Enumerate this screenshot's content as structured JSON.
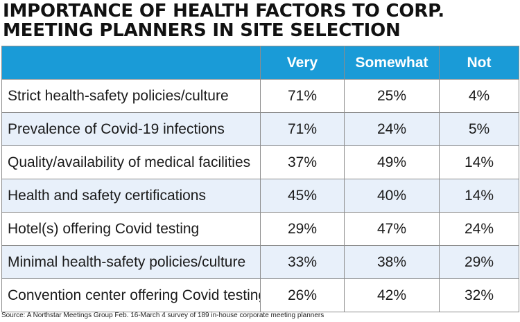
{
  "title": {
    "line1": "IMPORTANCE OF HEALTH FACTORS TO CORP.",
    "line2": "MEETING PLANNERS IN SITE SELECTION"
  },
  "chart_data": {
    "type": "table",
    "columns": [
      "Very",
      "Somewhat",
      "Not"
    ],
    "rows": [
      {
        "label": "Strict health-safety policies/culture",
        "values": [
          "71%",
          "25%",
          "4%"
        ]
      },
      {
        "label": "Prevalence of Covid-19 infections",
        "values": [
          "71%",
          "24%",
          "5%"
        ]
      },
      {
        "label": "Quality/availability of medical facilities",
        "values": [
          "37%",
          "49%",
          "14%"
        ]
      },
      {
        "label": "Health and safety certifications",
        "values": [
          "45%",
          "40%",
          "14%"
        ]
      },
      {
        "label": "Hotel(s) offering Covid testing",
        "values": [
          "29%",
          "47%",
          "24%"
        ]
      },
      {
        "label": "Minimal health-safety policies/culture",
        "values": [
          "33%",
          "38%",
          "29%"
        ]
      },
      {
        "label": "Convention center offering Covid testing",
        "values": [
          "26%",
          "42%",
          "32%"
        ]
      }
    ]
  },
  "source": "Source: A Northstar Meetings Group Feb. 16-March 4 survey of 189 in-house corporate meeting planners",
  "colors": {
    "header_bg": "#1a9bd7",
    "stripe_bg": "#e8f0fa",
    "border": "#8c8c8c"
  }
}
